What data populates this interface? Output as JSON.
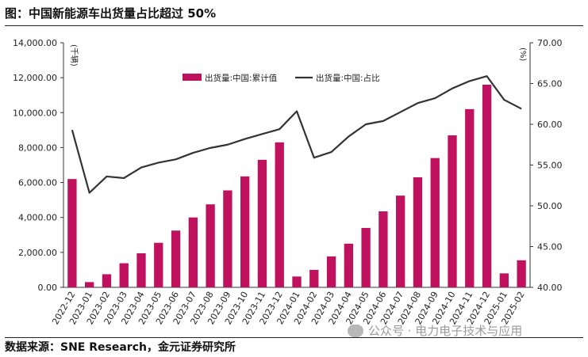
{
  "header": {
    "title": "图：中国新能源车出货量占比超过 50%"
  },
  "footer": {
    "source": "数据来源：SNE Research，金元证券研究所"
  },
  "watermark": {
    "text": "公众号 · 电力电子技术与应用"
  },
  "chart_data": {
    "type": "bar+line",
    "categories": [
      "2022-12",
      "2023-01",
      "2023-02",
      "2023-03",
      "2023-04",
      "2023-05",
      "2023-06",
      "2023-07",
      "2023-08",
      "2023-09",
      "2023-10",
      "2023-11",
      "2023-12",
      "2024-01",
      "2024-02",
      "2024-03",
      "2024-04",
      "2024-05",
      "2024-06",
      "2024-07",
      "2024-08",
      "2024-09",
      "2024-10",
      "2024-11",
      "2024-12",
      "2025-01",
      "2025-02"
    ],
    "series": [
      {
        "name": "出货量:中国:累计值",
        "type": "bar",
        "axis": "left",
        "color": "#c0115f",
        "values": [
          6200,
          300,
          750,
          1380,
          1950,
          2550,
          3250,
          4000,
          4750,
          5550,
          6350,
          7300,
          8300,
          620,
          1000,
          1770,
          2500,
          3400,
          4350,
          5250,
          6300,
          7400,
          8700,
          10200,
          11600,
          800,
          1550
        ]
      },
      {
        "name": "出货量:中国:占比",
        "type": "line",
        "axis": "right",
        "color": "#333333",
        "values": [
          59.3,
          51.6,
          53.6,
          53.4,
          54.7,
          55.3,
          55.7,
          56.5,
          57.1,
          57.5,
          58.2,
          58.8,
          59.4,
          61.6,
          55.9,
          56.6,
          58.5,
          60.0,
          60.4,
          61.5,
          62.6,
          63.2,
          64.4,
          65.3,
          65.9,
          63.0,
          61.9
        ]
      }
    ],
    "y_left": {
      "unit": "(千辆)",
      "min": 0,
      "max": 14000,
      "ticks": [
        "0.00",
        "2,000.00",
        "4,000.00",
        "6,000.00",
        "8,000.00",
        "10,000.00",
        "12,000.00",
        "14,000.00"
      ]
    },
    "y_right": {
      "unit": "(%)",
      "min": 40,
      "max": 70,
      "ticks": [
        "40.00",
        "45.00",
        "50.00",
        "55.00",
        "60.00",
        "65.00",
        "70.00"
      ]
    },
    "legend_position": "top-center"
  }
}
